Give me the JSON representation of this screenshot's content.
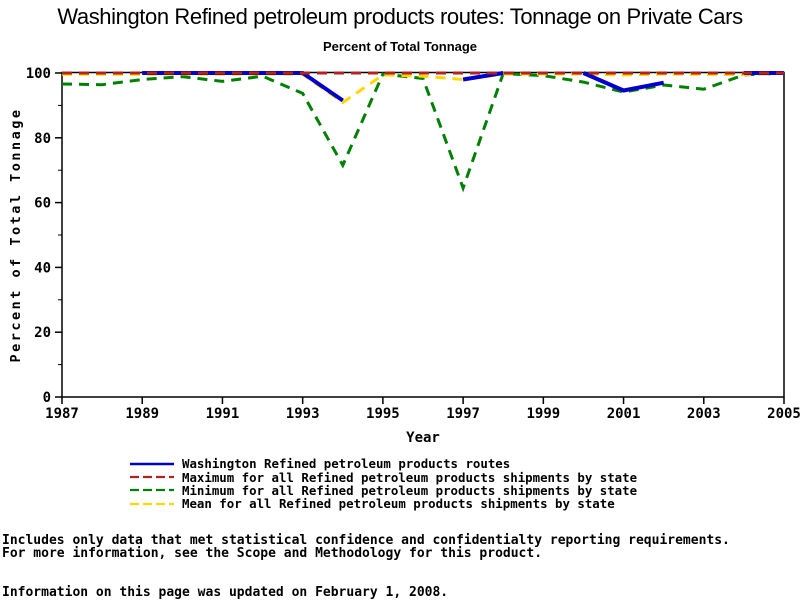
{
  "page": {
    "title": "Washington Refined petroleum products routes: Tonnage on Private Cars",
    "subtitle": "Percent of Total Tonnage",
    "footnote_line1": "Includes only data that met statistical confidence and confidentialty reporting requirements.",
    "footnote_line2": "For more information, see the Scope and Methodology for this product.",
    "updated_note": "Information on this page was updated on February 1, 2008."
  },
  "chart_data": {
    "type": "line",
    "title": "Washington Refined petroleum products routes: Tonnage on Private Cars",
    "subtitle": "Percent of Total Tonnage",
    "xlabel": "Year",
    "ylabel": "Percent of Total Tonnage",
    "x": [
      1987,
      1988,
      1989,
      1990,
      1991,
      1992,
      1993,
      1994,
      1995,
      1996,
      1997,
      1998,
      1999,
      2000,
      2001,
      2002,
      2003,
      2004,
      2005
    ],
    "x_tick_labels": [
      1987,
      1989,
      1991,
      1993,
      1995,
      1997,
      1999,
      2001,
      2003,
      2005
    ],
    "y_ticks": [
      0,
      20,
      40,
      60,
      80,
      100
    ],
    "y_minor_ticks": [
      10,
      30,
      50,
      70,
      90
    ],
    "xlim": [
      1987,
      2005
    ],
    "ylim": [
      0,
      100
    ],
    "grid": "off",
    "legend_position": "bottom",
    "series": [
      {
        "name": "Washington Refined petroleum products routes",
        "color": "#0000CC",
        "style": "solid",
        "values": [
          null,
          null,
          100,
          100,
          100,
          100,
          100,
          91.5,
          null,
          null,
          98,
          100,
          null,
          100,
          94.6,
          97,
          null,
          100,
          100
        ]
      },
      {
        "name": "Maximum for all Refined petroleum products shipments by state",
        "color": "#B22222",
        "style": "dashed",
        "values": [
          100,
          100,
          100,
          100,
          100,
          100,
          100,
          100,
          100,
          100,
          100,
          100,
          100,
          100,
          100,
          100,
          100,
          100,
          100
        ]
      },
      {
        "name": "Minimum for all Refined petroleum products shipments by state",
        "color": "#008000",
        "style": "dashed",
        "values": [
          96.6,
          96.4,
          98,
          98.9,
          97.4,
          99,
          93.7,
          71.5,
          99.7,
          98.3,
          64.5,
          99.8,
          99.2,
          97.2,
          94.1,
          96.3,
          95,
          99.4,
          100
        ]
      },
      {
        "name": "Mean for all Refined petroleum products shipments by state",
        "color": "#FFD700",
        "style": "dashed",
        "values": [
          99.6,
          99.6,
          99.6,
          99.7,
          99.6,
          99.7,
          99.6,
          90.9,
          99.4,
          99,
          98,
          99.7,
          99.7,
          99.7,
          99.4,
          99.7,
          99.6,
          99.5,
          99.9
        ]
      }
    ]
  }
}
